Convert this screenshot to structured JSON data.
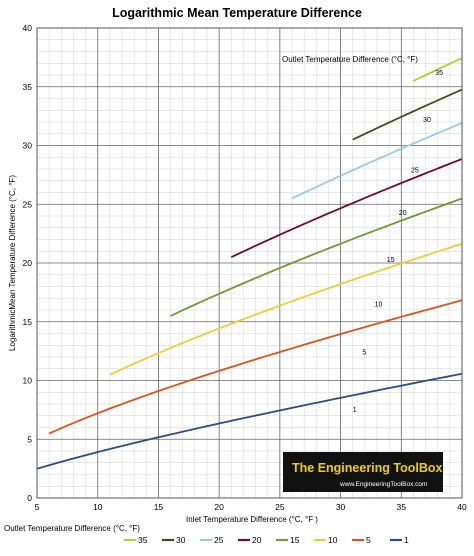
{
  "chart_data": {
    "type": "line",
    "title": "Logarithmic Mean Temperature Difference",
    "xlabel": "Inlet Temperature Difference (°C, °F )",
    "ylabel": "LogarithmicMean Temperature Difference (°C, °F)",
    "xlim": [
      5,
      40
    ],
    "ylim": [
      0,
      40
    ],
    "x_ticks": [
      5,
      10,
      15,
      20,
      25,
      30,
      35,
      40
    ],
    "y_ticks": [
      0,
      5,
      10,
      15,
      20,
      25,
      30,
      35,
      40
    ],
    "grid": true,
    "inline_legend_title": "Outlet Temperature Difference (°C, °F)",
    "bottom_legend_title": "Outlet Temperature Difference (°C, °F)",
    "legend_placement": "bottom",
    "watermark": {
      "title": "The Engineering ToolBox",
      "subtitle": "www.EngineeringToolBox.com",
      "background": "#111111",
      "title_color": "#f0d000",
      "subtitle_color": "#ffffff"
    },
    "series": [
      {
        "name": "35",
        "outlet": 35,
        "color": "#b5c93a",
        "x_start": 36,
        "x_end": 40
      },
      {
        "name": "30",
        "outlet": 30,
        "color": "#37521f",
        "x_start": 31,
        "x_end": 40
      },
      {
        "name": "25",
        "outlet": 25,
        "color": "#9ac8ef",
        "x_start": 26,
        "x_end": 40
      },
      {
        "name": "20",
        "outlet": 20,
        "color": "#6e0a2e",
        "x_start": 21,
        "x_end": 40
      },
      {
        "name": "15",
        "outlet": 15,
        "color": "#6f9a34",
        "x_start": 16,
        "x_end": 40
      },
      {
        "name": "10",
        "outlet": 10,
        "color": "#f0cc3a",
        "x_start": 11,
        "x_end": 40
      },
      {
        "name": "5",
        "outlet": 5,
        "color": "#d9541e",
        "x_start": 6,
        "x_end": 40
      },
      {
        "name": "1",
        "outlet": 1,
        "color": "#2c4d84",
        "x_start": 5,
        "x_end": 40
      }
    ],
    "curve_labels": [
      {
        "text": "35",
        "x": 37.8,
        "y": 36.0
      },
      {
        "text": "30",
        "x": 36.8,
        "y": 32.0
      },
      {
        "text": "25",
        "x": 35.8,
        "y": 27.7
      },
      {
        "text": "20",
        "x": 34.8,
        "y": 24.1
      },
      {
        "text": "15",
        "x": 33.8,
        "y": 20.1
      },
      {
        "text": "10",
        "x": 32.8,
        "y": 16.3
      },
      {
        "text": "5",
        "x": 31.8,
        "y": 12.2
      },
      {
        "text": "1",
        "x": 31.0,
        "y": 7.3
      }
    ]
  }
}
